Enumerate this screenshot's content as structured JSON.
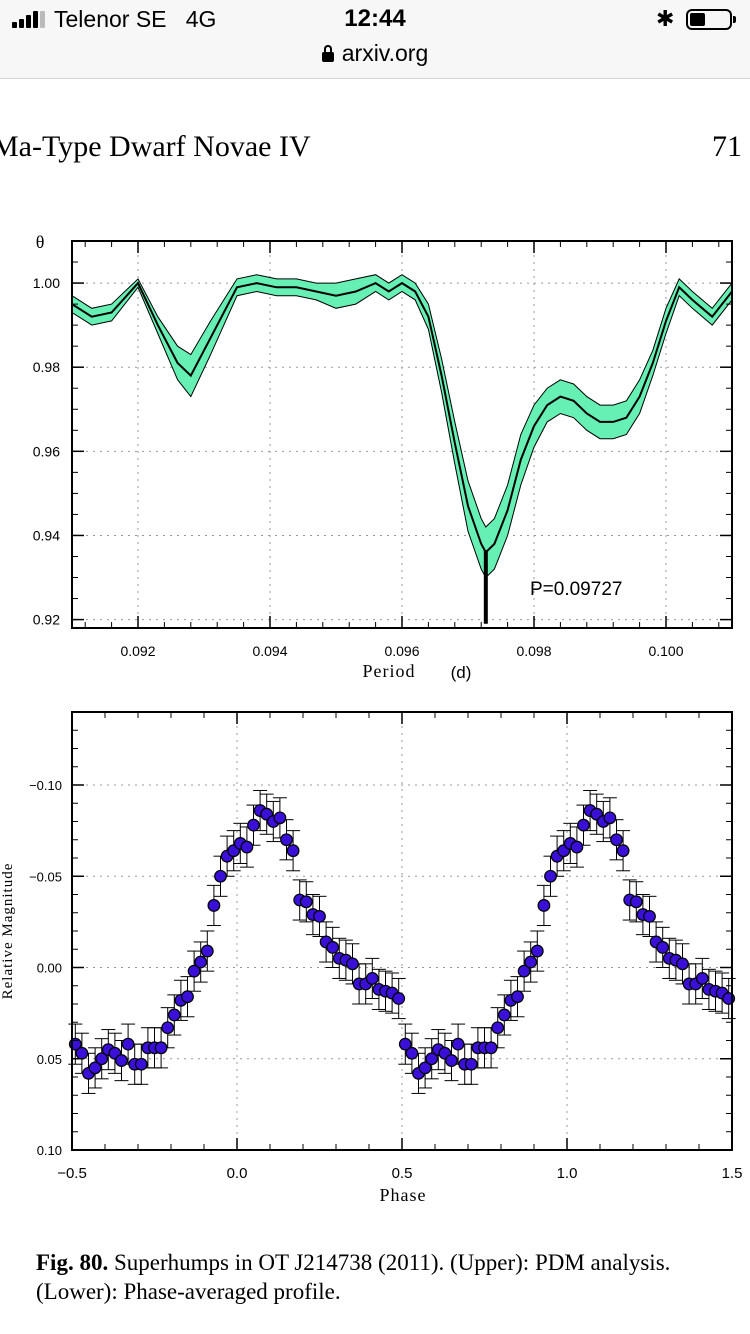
{
  "status_bar": {
    "carrier": "Telenor SE",
    "network": "4G",
    "time": "12:44",
    "url": "arxiv.org",
    "signal_bars": 4,
    "battery_percent": 30
  },
  "page": {
    "running_head": "Ma-Type Dwarf Novae IV",
    "page_number": "71",
    "caption_label": "Fig. 80.",
    "caption_text": "Superhumps in OT J214738 (2011). (Upper): PDM analysis. (Lower): Phase-averaged profile."
  },
  "chart_data": [
    {
      "type": "line",
      "name": "pdm",
      "ylabel": "θ",
      "xlabel": "Period",
      "xunit": "(d)",
      "xlim": [
        0.091,
        0.101
      ],
      "ylim": [
        0.918,
        1.01
      ],
      "xticks": [
        "0.092",
        "0.094",
        "0.096",
        "0.098",
        "0.100"
      ],
      "yticks": [
        "0.92",
        "0.94",
        "0.96",
        "0.98",
        "1.00"
      ],
      "annotation": "P=0.09727",
      "period_marker": 0.09727,
      "series": [
        {
          "name": "theta",
          "x": [
            0.091,
            0.0913,
            0.0916,
            0.092,
            0.0923,
            0.0926,
            0.0928,
            0.0931,
            0.0935,
            0.0938,
            0.0941,
            0.0944,
            0.0947,
            0.095,
            0.0953,
            0.0956,
            0.0958,
            0.096,
            0.0962,
            0.0964,
            0.0966,
            0.0968,
            0.097,
            0.0972,
            0.09727,
            0.0974,
            0.0976,
            0.0978,
            0.098,
            0.0982,
            0.0984,
            0.0986,
            0.0988,
            0.099,
            0.0992,
            0.0994,
            0.0996,
            0.0998,
            0.1,
            0.1002,
            0.1004,
            0.1007,
            0.101
          ],
          "values": [
            0.995,
            0.992,
            0.993,
            1.0,
            0.99,
            0.981,
            0.978,
            0.987,
            0.999,
            1.0,
            0.999,
            0.999,
            0.998,
            0.997,
            0.998,
            1.0,
            0.998,
            1.0,
            0.998,
            0.992,
            0.978,
            0.962,
            0.947,
            0.938,
            0.936,
            0.938,
            0.946,
            0.958,
            0.966,
            0.971,
            0.973,
            0.972,
            0.969,
            0.967,
            0.967,
            0.968,
            0.973,
            0.981,
            0.991,
            0.999,
            0.996,
            0.992,
            0.998
          ],
          "band_halfwidth": [
            0.002,
            0.002,
            0.002,
            0.001,
            0.002,
            0.004,
            0.005,
            0.004,
            0.002,
            0.002,
            0.002,
            0.002,
            0.002,
            0.003,
            0.003,
            0.002,
            0.002,
            0.002,
            0.002,
            0.003,
            0.004,
            0.005,
            0.006,
            0.006,
            0.006,
            0.006,
            0.006,
            0.006,
            0.005,
            0.004,
            0.004,
            0.004,
            0.004,
            0.004,
            0.004,
            0.004,
            0.004,
            0.003,
            0.003,
            0.002,
            0.002,
            0.002,
            0.002
          ]
        }
      ]
    },
    {
      "type": "scatter",
      "name": "profile",
      "xlabel": "Phase",
      "ylabel": "Relative Magnitude",
      "xlim": [
        -0.5,
        1.5
      ],
      "ylim": [
        0.1,
        -0.14
      ],
      "xticks": [
        "−0.5",
        "0.0",
        "0.5",
        "1.0",
        "1.5"
      ],
      "yticks": [
        "−0.10",
        "−0.05",
        "0.00",
        "0.05",
        "0.10"
      ],
      "ytick_values": [
        -0.1,
        -0.05,
        0.0,
        0.05,
        0.1
      ],
      "xtick_values": [
        -0.5,
        0.0,
        0.5,
        1.0,
        1.5
      ],
      "error_bar": 0.011,
      "series": [
        {
          "name": "mean profile",
          "x": [
            -0.49,
            -0.47,
            -0.45,
            -0.43,
            -0.41,
            -0.39,
            -0.37,
            -0.35,
            -0.33,
            -0.31,
            -0.29,
            -0.27,
            -0.25,
            -0.23,
            -0.21,
            -0.19,
            -0.17,
            -0.15,
            -0.13,
            -0.11,
            -0.09,
            -0.07,
            -0.05,
            -0.03,
            -0.01,
            0.01,
            0.03,
            0.05,
            0.07,
            0.09,
            0.11,
            0.13,
            0.15,
            0.17,
            0.19,
            0.21,
            0.23,
            0.25,
            0.27,
            0.29,
            0.31,
            0.33,
            0.35,
            0.37,
            0.39,
            0.41,
            0.43,
            0.45,
            0.47,
            0.49
          ],
          "values": [
            0.042,
            0.047,
            0.058,
            0.055,
            0.05,
            0.045,
            0.047,
            0.051,
            0.042,
            0.053,
            0.053,
            0.044,
            0.044,
            0.044,
            0.033,
            0.026,
            0.018,
            0.016,
            0.002,
            -0.003,
            -0.009,
            -0.034,
            -0.05,
            -0.061,
            -0.064,
            -0.068,
            -0.066,
            -0.078,
            -0.086,
            -0.084,
            -0.08,
            -0.082,
            -0.07,
            -0.064,
            -0.037,
            -0.036,
            -0.029,
            -0.028,
            -0.014,
            -0.011,
            -0.005,
            -0.004,
            -0.002,
            0.009,
            0.009,
            0.006,
            0.012,
            0.013,
            0.014,
            0.017
          ]
        }
      ]
    }
  ]
}
